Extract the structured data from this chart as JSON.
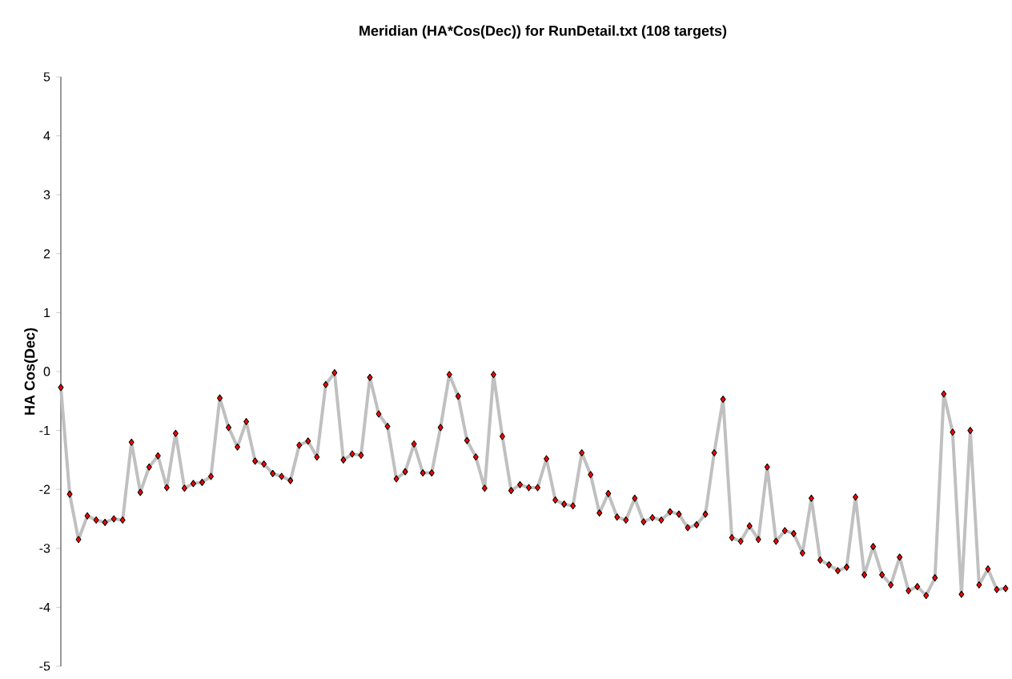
{
  "chart_data": {
    "type": "line",
    "title": "Meridian (HA*Cos(Dec)) for RunDetail.txt (108 targets)",
    "ylabel": "HA Cos(Dec)",
    "categories": [
      null,
      null,
      null,
      null,
      null,
      null,
      null,
      null,
      null,
      null,
      null,
      null,
      null,
      null,
      null,
      null,
      null,
      null,
      null,
      null,
      null,
      null,
      null,
      null,
      null,
      null,
      null,
      null,
      null,
      null,
      null,
      null,
      null,
      null,
      null,
      null,
      null,
      null,
      null,
      null,
      null,
      null,
      null,
      null,
      null,
      null,
      null,
      null,
      null,
      null,
      null,
      null,
      null,
      null,
      null,
      null,
      null,
      null,
      null,
      null,
      null,
      null,
      null,
      null,
      null,
      null,
      null,
      null,
      null,
      null,
      null,
      null,
      null,
      null,
      null,
      null,
      null,
      null,
      null,
      null,
      null,
      null,
      null,
      null,
      null,
      null,
      null,
      null,
      null,
      null,
      null,
      null,
      null,
      null,
      null,
      null,
      null,
      null,
      null,
      null,
      null,
      null,
      null,
      null,
      null,
      null,
      null,
      null
    ],
    "series": [
      {
        "color": "#c0c0c0",
        "values": [
          -0.27,
          -2.08,
          -2.85,
          -2.45,
          -2.52,
          -2.56,
          -2.5,
          -2.52,
          -1.2,
          -2.05,
          -1.62,
          -1.43,
          -1.97,
          -1.05,
          -1.98,
          -1.9,
          -1.88,
          -1.78,
          -0.45,
          -0.95,
          -1.28,
          -0.85,
          -1.52,
          -1.57,
          -1.73,
          -1.78,
          -1.85,
          -1.25,
          -1.18,
          -1.45,
          -0.22,
          -0.02,
          -1.5,
          -1.4,
          -1.42,
          -0.1,
          -0.72,
          -0.93,
          -1.82,
          -1.7,
          -1.23,
          -1.72,
          -1.72,
          -0.95,
          -0.05,
          -0.42,
          -1.17,
          -1.45,
          -1.98,
          -0.05,
          -1.1,
          -2.02,
          -1.92,
          -1.97,
          -1.97,
          -1.48,
          -2.18,
          -2.25,
          -2.28,
          -1.38,
          -1.75,
          -2.4,
          -2.07,
          -2.47,
          -2.52,
          -2.15,
          -2.55,
          -2.48,
          -2.52,
          -2.38,
          -2.42,
          -2.65,
          -2.6,
          -2.42,
          -1.38,
          -0.47,
          -2.82,
          -2.88,
          -2.62,
          -2.85,
          -1.62,
          -2.88,
          -2.7,
          -2.75,
          -3.08,
          -2.15,
          -3.2,
          -3.28,
          -3.38,
          -3.32,
          -2.13,
          -3.45,
          -2.97,
          -3.45,
          -3.62,
          -3.15,
          -3.72,
          -3.65,
          -3.8,
          -3.5,
          -0.38,
          -1.03,
          -3.78,
          -1.0,
          -3.62,
          -3.35,
          -3.7,
          -3.68
        ]
      }
    ],
    "ylim": [
      -5,
      5
    ],
    "yticks": [
      -5,
      -4,
      -3,
      -2,
      -1,
      0,
      1,
      2,
      3,
      4,
      5
    ],
    "marker": "diamond",
    "line_style": "solid"
  }
}
